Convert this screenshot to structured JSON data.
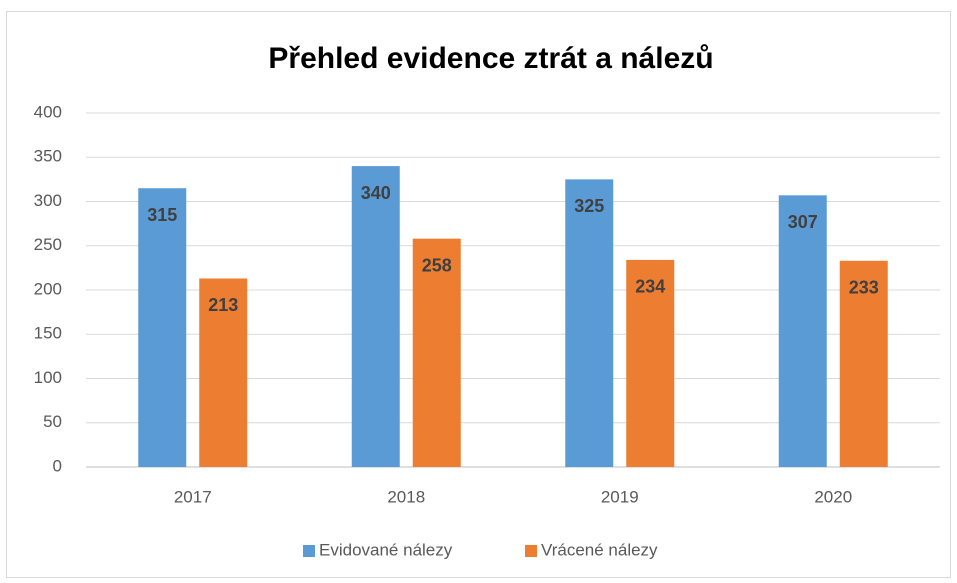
{
  "chart_data": {
    "type": "bar",
    "title": "Přehled evidence ztrát a nálezů",
    "categories": [
      "2017",
      "2018",
      "2019",
      "2020"
    ],
    "series": [
      {
        "name": "Evidované nálezy",
        "color": "#5b9bd5",
        "values": [
          315,
          340,
          325,
          307
        ]
      },
      {
        "name": "Vrácené nálezy",
        "color": "#ed7d31",
        "values": [
          213,
          258,
          234,
          233
        ]
      }
    ],
    "ylim": [
      0,
      400
    ],
    "yticks": [
      0,
      50,
      100,
      150,
      200,
      250,
      300,
      350,
      400
    ],
    "grid": true,
    "legend": "bottom",
    "data_labels": true
  }
}
